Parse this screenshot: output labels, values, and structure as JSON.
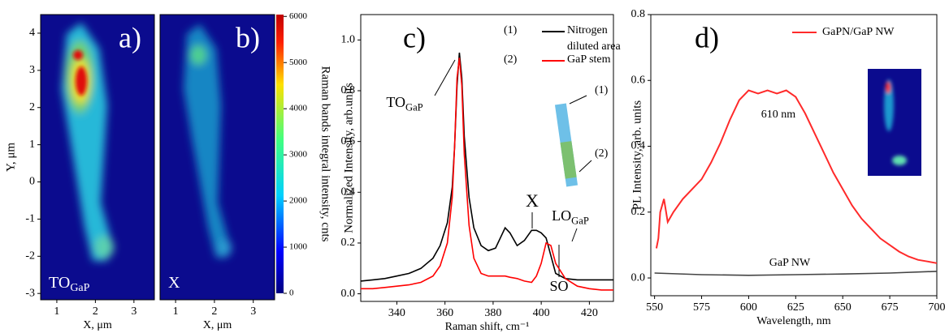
{
  "chart_data": [
    {
      "type": "heatmap",
      "panel_label": "a)",
      "annotation": {
        "text": "TO",
        "sub": "GaP"
      },
      "xlabel": "X, μm",
      "ylabel": "Y, μm",
      "xlim": [
        0.58,
        3.53
      ],
      "xticks": [
        1,
        2,
        3
      ],
      "ylim": [
        -3.17,
        4.5
      ],
      "yticks": [
        -3,
        -2,
        -1,
        0,
        1,
        2,
        3,
        4
      ]
    },
    {
      "type": "heatmap",
      "panel_label": "b)",
      "annotation": {
        "text": "X"
      },
      "xlabel": "X, μm",
      "xlim": [
        0.6,
        3.55
      ],
      "xticks": [
        1,
        2,
        3
      ],
      "ylim": [
        -3.17,
        4.5
      ],
      "colorbar": {
        "label": "Raman bands integral intensity, cnts",
        "lim": [
          0,
          6040
        ],
        "ticks": [
          0,
          1000,
          2000,
          3000,
          4000,
          5000,
          6000
        ]
      }
    },
    {
      "type": "line",
      "panel_label": "c)",
      "xlabel": "Raman shift, cm⁻¹",
      "ylabel": "Normalized Intensity, arb.units",
      "xlim": [
        325,
        430
      ],
      "xticks": [
        340,
        360,
        380,
        400,
        420
      ],
      "ylim": [
        -0.03,
        1.1
      ],
      "yticks": [
        {
          "value": 0,
          "label": "0.0"
        },
        0.2,
        0.4,
        0.6,
        0.8,
        {
          "value": 1,
          "label": "1.0"
        }
      ],
      "x": [
        325,
        330,
        335,
        340,
        345,
        350,
        355,
        358,
        361,
        363,
        364,
        365,
        366,
        367,
        368,
        370,
        372,
        375,
        378,
        381,
        383,
        385,
        387,
        390,
        393,
        396,
        398,
        400,
        402,
        404,
        406,
        410,
        415,
        420,
        425,
        430
      ],
      "series": [
        {
          "name": "Nitrogen diluted area",
          "marker": "(1)",
          "color": "#000000",
          "values": [
            0.05,
            0.055,
            0.06,
            0.07,
            0.08,
            0.1,
            0.14,
            0.19,
            0.28,
            0.42,
            0.58,
            0.82,
            0.95,
            0.85,
            0.62,
            0.38,
            0.26,
            0.19,
            0.17,
            0.18,
            0.22,
            0.26,
            0.24,
            0.19,
            0.21,
            0.25,
            0.25,
            0.24,
            0.22,
            0.15,
            0.08,
            0.06,
            0.055,
            0.055,
            0.055,
            0.055
          ]
        },
        {
          "name": "GaP stem",
          "marker": "(2)",
          "color": "#ff0000",
          "values": [
            0.02,
            0.02,
            0.025,
            0.03,
            0.035,
            0.045,
            0.07,
            0.11,
            0.2,
            0.38,
            0.58,
            0.85,
            0.93,
            0.82,
            0.55,
            0.27,
            0.14,
            0.08,
            0.07,
            0.07,
            0.07,
            0.07,
            0.065,
            0.06,
            0.05,
            0.045,
            0.07,
            0.12,
            0.2,
            0.19,
            0.12,
            0.06,
            0.03,
            0.02,
            0.015,
            0.015
          ]
        }
      ],
      "annotations": [
        {
          "text": "TO",
          "sub": "GaP"
        },
        {
          "text": "X"
        },
        {
          "text": "LO",
          "sub": "GaP"
        },
        {
          "text": "SO"
        }
      ],
      "inset_labels": [
        "(1)",
        "(2)"
      ]
    },
    {
      "type": "line",
      "panel_label": "d)",
      "xlabel": "Wavelength, nm",
      "ylabel": "PL Intensity, arb. units",
      "xlim": [
        548,
        700
      ],
      "xticks": [
        550,
        575,
        600,
        625,
        650,
        675,
        700
      ],
      "ylim": [
        -0.054,
        0.8
      ],
      "yticks": [
        {
          "value": 0,
          "label": "0.0"
        },
        0.2,
        0.4,
        0.6,
        0.8
      ],
      "series": [
        {
          "name": "GaPN/GaP NW",
          "color": "#ff2a2a",
          "x": [
            551,
            552,
            553,
            555,
            557,
            560,
            565,
            570,
            575,
            580,
            585,
            590,
            595,
            600,
            605,
            610,
            615,
            620,
            625,
            630,
            635,
            640,
            645,
            650,
            655,
            660,
            665,
            670,
            675,
            680,
            685,
            690,
            695,
            700
          ],
          "values": [
            0.09,
            0.12,
            0.2,
            0.24,
            0.17,
            0.2,
            0.24,
            0.27,
            0.3,
            0.35,
            0.41,
            0.48,
            0.54,
            0.57,
            0.56,
            0.57,
            0.56,
            0.57,
            0.55,
            0.5,
            0.44,
            0.38,
            0.32,
            0.27,
            0.22,
            0.18,
            0.15,
            0.12,
            0.1,
            0.08,
            0.065,
            0.055,
            0.05,
            0.045
          ]
        },
        {
          "name": "GaP NW",
          "color": "#444444",
          "x": [
            550,
            575,
            600,
            625,
            650,
            675,
            700
          ],
          "values": [
            0.015,
            0.01,
            0.008,
            0.01,
            0.012,
            0.015,
            0.02
          ]
        }
      ],
      "annotations": [
        {
          "text": "610 nm"
        }
      ]
    }
  ]
}
